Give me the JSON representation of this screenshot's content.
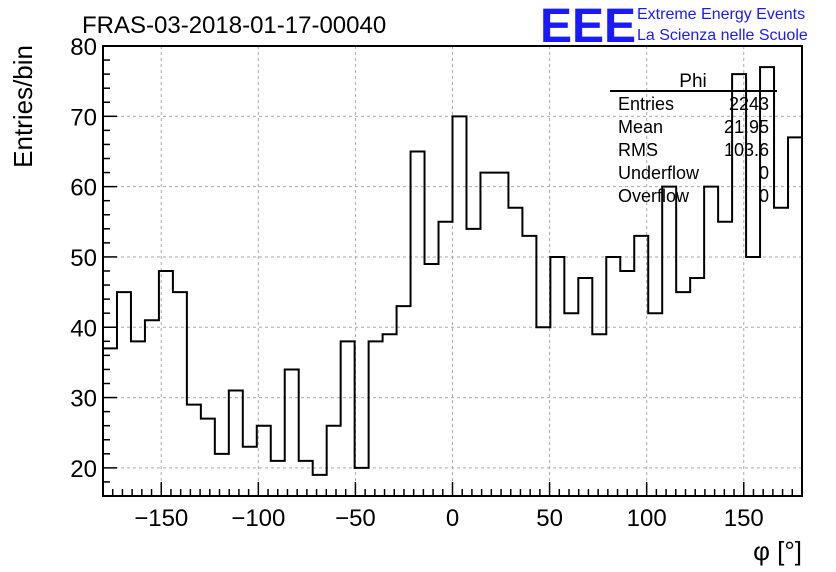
{
  "chart_data": {
    "type": "histogram",
    "title": "FRAS-03-2018-01-17-00040",
    "xlabel": "φ [°]",
    "ylabel": "Entries/bin",
    "xlim": [
      -180,
      180
    ],
    "ylim": [
      16,
      80
    ],
    "xticks": [
      -150,
      -100,
      -50,
      0,
      50,
      100,
      150
    ],
    "yticks": [
      20,
      30,
      40,
      50,
      60,
      70,
      80
    ],
    "grid": true,
    "bin_width": 7.2,
    "x": [
      -176.4,
      -169.2,
      -162,
      -154.8,
      -147.6,
      -140.4,
      -133.2,
      -126,
      -118.8,
      -111.6,
      -104.4,
      -97.2,
      -90,
      -82.8,
      -75.6,
      -68.4,
      -61.2,
      -54,
      -46.8,
      -39.6,
      -32.4,
      -25.2,
      -18,
      -10.8,
      -3.6,
      3.6,
      10.8,
      18,
      25.2,
      32.4,
      39.6,
      46.8,
      54,
      61.2,
      68.4,
      75.6,
      82.8,
      90,
      97.2,
      104.4,
      111.6,
      118.8,
      126,
      133.2,
      140.4,
      147.6,
      154.8,
      162,
      169.2,
      176.4
    ],
    "values": [
      37,
      45,
      38,
      41,
      48,
      45,
      29,
      27,
      22,
      31,
      23,
      26,
      21,
      34,
      21,
      19,
      26,
      38,
      20,
      38,
      39,
      43,
      65,
      49,
      55,
      70,
      54,
      62,
      62,
      57,
      53,
      40,
      50,
      42,
      47,
      39,
      50,
      48,
      53,
      42,
      60,
      45,
      47,
      60,
      55,
      76,
      50,
      77,
      57,
      67
    ]
  },
  "stats_box": {
    "title": "Phi",
    "rows": [
      {
        "label": "Entries",
        "value": "2243"
      },
      {
        "label": "Mean",
        "value": "21.95"
      },
      {
        "label": "RMS",
        "value": "103.6"
      },
      {
        "label": "Underflow",
        "value": "0"
      },
      {
        "label": "Overflow",
        "value": "0"
      }
    ]
  },
  "logo": {
    "text": "EEE",
    "line1": "Extreme Energy Events",
    "line2": "La Scienza nelle Scuole",
    "color": "#1a1aff"
  },
  "colors": {
    "grid": "#aaaaaa",
    "line": "#000000"
  }
}
